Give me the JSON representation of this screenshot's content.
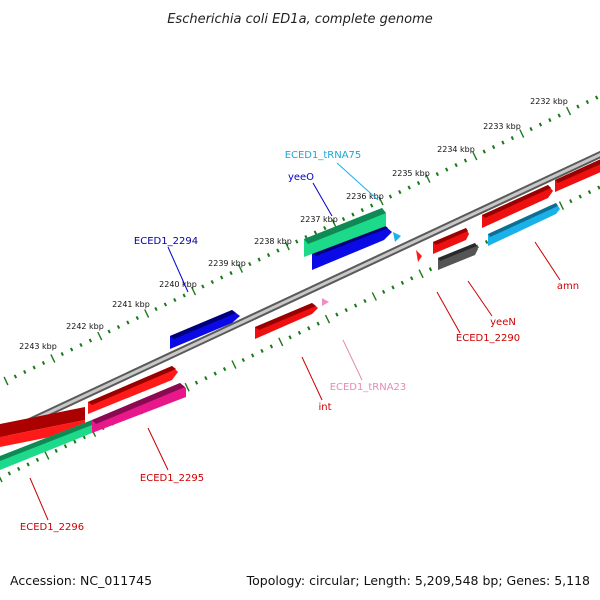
{
  "title": "Escherichia coli ED1a, complete genome",
  "footer": {
    "accession": "Accession: NC_011745",
    "info": "Topology: circular; Length: 5,209,548 bp; Genes: 5,118"
  },
  "ticks": [
    "2232 kbp",
    "2233 kbp",
    "2234 kbp",
    "2235 kbp",
    "2236 kbp",
    "2237 kbp",
    "2238 kbp",
    "2239 kbp",
    "2240 kbp",
    "2241 kbp",
    "2242 kbp",
    "2243 kbp"
  ],
  "genes": [
    {
      "name": "ECED1_tRNA75",
      "color": "#1aa7d6"
    },
    {
      "name": "yeeO",
      "color": "#0000cc"
    },
    {
      "name": "ECED1_2294",
      "color": "#0000aa"
    },
    {
      "name": "amn",
      "color": "#cc0000"
    },
    {
      "name": "yeeN",
      "color": "#cc0000"
    },
    {
      "name": "ECED1_2290",
      "color": "#cc0000"
    },
    {
      "name": "ECED1_tRNA23",
      "color": "#e58bb5"
    },
    {
      "name": "int",
      "color": "#cc0000"
    },
    {
      "name": "ECED1_2295",
      "color": "#cc0000"
    },
    {
      "name": "ECED1_2296",
      "color": "#cc0000"
    }
  ],
  "colors": {
    "cds_red": "#ff0000",
    "cds_blue": "#0000ff",
    "cds_green": "#1dd98a",
    "cds_magenta": "#e8188a",
    "cds_cyan": "#1ab0e8",
    "cds_gray": "#555555",
    "rna_pink": "#f08ccc",
    "tick_green": "#1a7a1a",
    "backbone": "#888888"
  }
}
